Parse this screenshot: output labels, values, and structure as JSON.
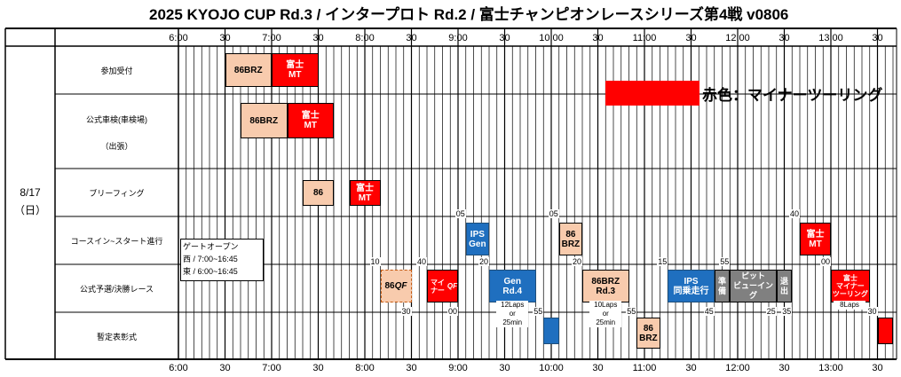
{
  "title": "2025 KYOJO CUP Rd.3 / インタープロト Rd.2 / 富士チャンピオンレースシリーズ第4戦 v0806",
  "chart_data": {
    "type": "table",
    "date": "8/17",
    "weekday": "（日）",
    "time_start": "6:00",
    "time_end": "13:40",
    "top_ticks": [
      "6:00",
      "30",
      "7:00",
      "30",
      "8:00",
      "30",
      "9:00",
      "30",
      "10:00",
      "30",
      "11:00",
      "30",
      "12:00",
      "30",
      "13:00",
      "30"
    ],
    "bottom_ticks": [
      "6:00",
      "30",
      "7:00",
      "30",
      "8:00",
      "30",
      "9:00",
      "30",
      "10:00",
      "30",
      "11:00",
      "30",
      "12:00",
      "30",
      "13:00",
      "30"
    ],
    "rows": [
      {
        "id": "r0",
        "label": "参加受付",
        "sub": ""
      },
      {
        "id": "r1",
        "label": "公式車検(車検場)",
        "sub": "（出張）"
      },
      {
        "id": "r2",
        "label": "ブリーフィング",
        "sub": ""
      },
      {
        "id": "r3",
        "label": "コースイン~スタート進行",
        "sub": ""
      },
      {
        "id": "r4",
        "label": "公式予選/決勝レース",
        "sub": ""
      },
      {
        "id": "r5",
        "label": "暫定表彰式",
        "sub": ""
      }
    ],
    "legend": {
      "label": "赤色：マイナーツーリング",
      "color": "#ff0000"
    },
    "gate_note": [
      "ゲートオープン",
      "西 / 7:00~16:45",
      "東 / 6:00~16:45"
    ],
    "blocks": [
      {
        "row": 0,
        "start": "6:30",
        "end": "7:00",
        "label": "86BRZ",
        "style": "peach"
      },
      {
        "row": 0,
        "start": "7:00",
        "end": "7:30",
        "label": "富士\nMT",
        "style": "red"
      },
      {
        "row": 1,
        "start": "6:40",
        "end": "7:10",
        "label": "86BRZ",
        "style": "peach"
      },
      {
        "row": 1,
        "start": "7:10",
        "end": "7:40",
        "label": "富士\nMT",
        "style": "red"
      },
      {
        "row": 2,
        "start": "7:20",
        "end": "7:40",
        "label": "86",
        "style": "peach"
      },
      {
        "row": 2,
        "start": "7:50",
        "end": "8:10",
        "label": "富士\nMT",
        "style": "red"
      },
      {
        "row": 3,
        "start": "9:05",
        "end": "9:20",
        "label": "IPS\nGen",
        "style": "blue"
      },
      {
        "row": 3,
        "start": "10:05",
        "end": "10:20",
        "label": "86\nBRZ",
        "style": "peach"
      },
      {
        "row": 3,
        "start": "12:40",
        "end": "13:00",
        "label": "富士\nMT",
        "style": "red"
      },
      {
        "row": 4,
        "start": "8:10",
        "end": "8:30",
        "label": "86\nQF",
        "style": "peach dash"
      },
      {
        "row": 4,
        "start": "8:40",
        "end": "9:00",
        "label": "マイナー\nQF",
        "style": "red sm"
      },
      {
        "row": 4,
        "start": "9:20",
        "end": "9:50",
        "label": "Gen\nRd.4",
        "style": "blue"
      },
      {
        "row": 4,
        "start": "10:20",
        "end": "10:50",
        "label": "86BRZ\nRd.3",
        "style": "peach"
      },
      {
        "row": 4,
        "start": "11:15",
        "end": "11:45",
        "label": "IPS\n同乗走行",
        "style": "blue"
      },
      {
        "row": 4,
        "start": "11:45",
        "end": "11:55",
        "label": "準\n備",
        "style": "grey"
      },
      {
        "row": 4,
        "start": "11:55",
        "end": "12:25",
        "label": "ピット\nビューイング",
        "style": "grey"
      },
      {
        "row": 4,
        "start": "12:25",
        "end": "12:35",
        "label": "退\n出",
        "style": "grey"
      },
      {
        "row": 4,
        "start": "13:00",
        "end": "13:25",
        "label": "富士\nマイナー\nツーリング",
        "style": "red sm"
      },
      {
        "row": 5,
        "start": "9:55",
        "end": "10:05",
        "label": "",
        "style": "blue"
      },
      {
        "row": 5,
        "start": "10:55",
        "end": "11:10",
        "label": "86\nBRZ",
        "style": "peach"
      },
      {
        "row": 5,
        "start": "13:30",
        "end": "13:40",
        "label": "",
        "style": "red"
      }
    ],
    "row_numbers": [
      {
        "row": 3,
        "time": "9:05",
        "text": "05",
        "pos": "top"
      },
      {
        "row": 3,
        "time": "10:05",
        "text": "05",
        "pos": "top"
      },
      {
        "row": 3,
        "time": "12:40",
        "text": "40",
        "pos": "top"
      },
      {
        "row": 4,
        "time": "8:10",
        "text": "10",
        "pos": "top"
      },
      {
        "row": 4,
        "time": "8:40",
        "text": "40",
        "pos": "top"
      },
      {
        "row": 4,
        "time": "9:20",
        "text": "20",
        "pos": "top"
      },
      {
        "row": 4,
        "time": "10:20",
        "text": "20",
        "pos": "top"
      },
      {
        "row": 4,
        "time": "11:15",
        "text": "15",
        "pos": "top"
      },
      {
        "row": 4,
        "time": "11:55",
        "text": "55",
        "pos": "top"
      },
      {
        "row": 4,
        "time": "13:00",
        "text": "00",
        "pos": "top"
      },
      {
        "row": 4,
        "time": "8:30",
        "text": "30",
        "pos": "bottom"
      },
      {
        "row": 4,
        "time": "9:00",
        "text": "00",
        "pos": "bottom"
      },
      {
        "row": 4,
        "time": "9:55",
        "text": "55",
        "pos": "bottom"
      },
      {
        "row": 4,
        "time": "10:55",
        "text": "55",
        "pos": "bottom"
      },
      {
        "row": 4,
        "time": "11:45",
        "text": "45",
        "pos": "bottom"
      },
      {
        "row": 4,
        "time": "12:25",
        "text": "25",
        "pos": "bottom"
      },
      {
        "row": 4,
        "time": "12:35",
        "text": "35",
        "pos": "bottom"
      },
      {
        "row": 4,
        "time": "13:30",
        "text": "30",
        "pos": "bottom"
      }
    ],
    "race_notes": [
      {
        "time": "9:35",
        "text": "12Laps\nor\n25min"
      },
      {
        "time": "10:35",
        "text": "10Laps\nor\n25min"
      },
      {
        "time": "13:12",
        "text": "8Laps"
      }
    ]
  }
}
